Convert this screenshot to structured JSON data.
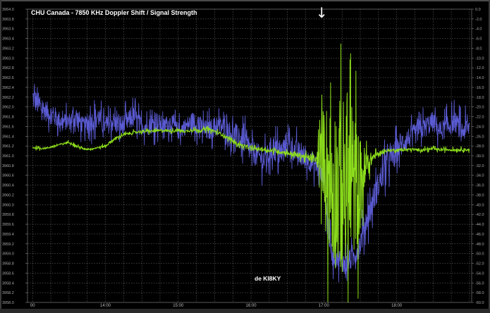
{
  "chart_data": {
    "type": "line",
    "title": "CHU Canada - 7850 KHz Doppler Shift / Signal Strength",
    "annotation": "de KI8KY",
    "marker": "↓",
    "x_tick_labels": [
      "00",
      "14:00",
      "15:00",
      "16:00",
      "17:00",
      "18:00"
    ],
    "x_tick_hours": [
      13.0,
      14.0,
      15.0,
      16.0,
      17.0,
      18.0
    ],
    "xlim": [
      12.93,
      19.03
    ],
    "marker_hour": 16.97,
    "left_axis": {
      "ylim": [
        3958.0,
        3964.0
      ],
      "tick_labels": [
        "3958.0",
        "3958.2",
        "3958.4",
        "3958.6",
        "3958.8",
        "3959.0",
        "3959.2",
        "3959.4",
        "3959.6",
        "3959.8",
        "3960.0",
        "3960.2",
        "3960.4",
        "3960.6",
        "3960.8",
        "3961.0",
        "3961.2",
        "3961.4",
        "3961.6",
        "3961.8",
        "3962.0",
        "3962.2",
        "3962.4",
        "3962.6",
        "3962.8",
        "3963.0",
        "3963.2",
        "3963.4",
        "3963.6",
        "3963.8",
        "3964.0"
      ]
    },
    "right_axis": {
      "ylim": [
        -60.0,
        0.0
      ],
      "tick_labels": [
        "-60.0",
        "-58.0",
        "-56.0",
        "-54.0",
        "-52.0",
        "-50.0",
        "-48.0",
        "-46.0",
        "-44.0",
        "-42.0",
        "-40.0",
        "-38.0",
        "-36.0",
        "-34.0",
        "-32.0",
        "-30.0",
        "-28.0",
        "-26.0",
        "-24.0",
        "-22.0",
        "-20.0",
        "-18.0",
        "-16.0",
        "-14.0",
        "-12.0",
        "-10.0",
        "-8.0",
        "-6.0",
        "-4.0",
        "-2.0",
        "0.0"
      ]
    },
    "grid": true,
    "series": [
      {
        "color": "#5a5ad2",
        "axis": "left",
        "x": [
          13.0,
          13.1,
          13.2,
          13.3,
          13.4,
          13.5,
          13.6,
          13.7,
          13.8,
          13.9,
          14.0,
          14.1,
          14.2,
          14.3,
          14.4,
          14.5,
          14.6,
          14.7,
          14.8,
          14.9,
          15.0,
          15.1,
          15.2,
          15.3,
          15.4,
          15.5,
          15.6,
          15.7,
          15.8,
          15.9,
          16.0,
          16.1,
          16.2,
          16.3,
          16.4,
          16.5,
          16.6,
          16.7,
          16.8,
          16.9,
          17.0,
          17.1,
          17.2,
          17.3,
          17.4,
          17.5,
          17.6,
          17.7,
          17.8,
          17.9,
          18.0,
          18.1,
          18.2,
          18.3,
          18.4,
          18.5,
          18.6,
          18.7,
          18.8,
          18.9,
          19.0
        ],
        "y": [
          3962.2,
          3962.0,
          3961.9,
          3961.8,
          3961.7,
          3961.7,
          3961.8,
          3961.6,
          3961.7,
          3961.8,
          3961.6,
          3961.7,
          3961.6,
          3961.7,
          3961.8,
          3961.6,
          3961.6,
          3961.7,
          3961.6,
          3961.7,
          3961.5,
          3961.6,
          3961.7,
          3961.6,
          3961.5,
          3961.6,
          3961.6,
          3961.5,
          3961.4,
          3961.3,
          3961.1,
          3961.0,
          3960.9,
          3961.2,
          3961.0,
          3961.3,
          3961.1,
          3961.0,
          3960.9,
          3960.8,
          3960.5,
          3959.0,
          3958.9,
          3958.8,
          3958.9,
          3959.2,
          3959.8,
          3960.2,
          3960.6,
          3960.9,
          3961.1,
          3961.3,
          3961.4,
          3961.5,
          3961.6,
          3961.7,
          3961.5,
          3961.6,
          3961.7,
          3961.5,
          3961.6
        ],
        "noise": [
          0.35,
          0.3,
          0.3,
          0.3,
          0.25,
          0.25,
          0.3,
          0.25,
          0.3,
          0.3,
          0.25,
          0.3,
          0.3,
          0.3,
          0.3,
          0.25,
          0.25,
          0.3,
          0.25,
          0.25,
          0.25,
          0.25,
          0.3,
          0.3,
          0.3,
          0.3,
          0.3,
          0.3,
          0.35,
          0.35,
          0.35,
          0.35,
          0.35,
          0.4,
          0.35,
          0.35,
          0.35,
          0.35,
          0.3,
          0.3,
          0.3,
          0.35,
          0.3,
          0.3,
          0.3,
          0.35,
          0.4,
          0.4,
          0.4,
          0.4,
          0.35,
          0.35,
          0.3,
          0.3,
          0.3,
          0.3,
          0.3,
          0.3,
          0.3,
          0.3,
          0.3
        ]
      },
      {
        "color": "#8cdc1c",
        "axis": "right",
        "x": [
          13.0,
          13.1,
          13.2,
          13.3,
          13.4,
          13.5,
          13.6,
          13.7,
          13.8,
          13.9,
          14.0,
          14.1,
          14.2,
          14.3,
          14.4,
          14.5,
          14.6,
          14.7,
          14.8,
          14.9,
          15.0,
          15.1,
          15.2,
          15.3,
          15.4,
          15.5,
          15.6,
          15.7,
          15.8,
          15.9,
          16.0,
          16.1,
          16.2,
          16.3,
          16.4,
          16.5,
          16.6,
          16.7,
          16.8,
          16.9,
          17.0,
          17.1,
          17.2,
          17.3,
          17.4,
          17.5,
          17.6,
          17.7,
          17.8,
          17.9,
          18.0,
          18.1,
          18.2,
          18.3,
          18.4,
          18.5,
          18.6,
          18.7,
          18.8,
          18.9,
          19.0
        ],
        "y": [
          -28.3,
          -28.5,
          -28.4,
          -28.0,
          -27.6,
          -27.2,
          -28.0,
          -28.6,
          -28.6,
          -28.3,
          -28.0,
          -26.8,
          -26.0,
          -25.5,
          -25.2,
          -25.0,
          -25.0,
          -24.9,
          -24.8,
          -24.9,
          -24.8,
          -25.0,
          -24.7,
          -24.8,
          -24.5,
          -25.0,
          -25.6,
          -26.5,
          -27.5,
          -28.0,
          -28.5,
          -28.6,
          -28.8,
          -29.0,
          -29.2,
          -29.4,
          -29.8,
          -30.0,
          -30.5,
          -30.8,
          -29.0,
          -36.0,
          -36.0,
          -36.0,
          -36.0,
          -36.0,
          -31.5,
          -30.0,
          -29.2,
          -28.9,
          -28.8,
          -28.8,
          -28.7,
          -28.8,
          -28.7,
          -28.6,
          -28.8,
          -28.7,
          -28.8,
          -28.7,
          -28.8
        ],
        "noise": [
          0.3,
          0.3,
          0.3,
          0.3,
          0.3,
          0.3,
          0.3,
          0.3,
          0.3,
          0.3,
          0.4,
          0.4,
          0.4,
          0.4,
          0.4,
          0.4,
          0.4,
          0.4,
          0.4,
          0.4,
          0.4,
          0.4,
          0.4,
          0.4,
          0.5,
          0.5,
          0.5,
          0.5,
          0.5,
          0.5,
          0.5,
          0.5,
          0.5,
          0.5,
          0.6,
          0.6,
          0.8,
          0.8,
          1.0,
          1.0,
          14.0,
          24.0,
          25.0,
          26.0,
          22.0,
          14.0,
          3.0,
          1.0,
          0.5,
          0.4,
          0.4,
          0.4,
          0.4,
          0.4,
          0.4,
          0.4,
          0.4,
          0.4,
          0.4,
          0.4,
          0.4
        ]
      }
    ]
  }
}
